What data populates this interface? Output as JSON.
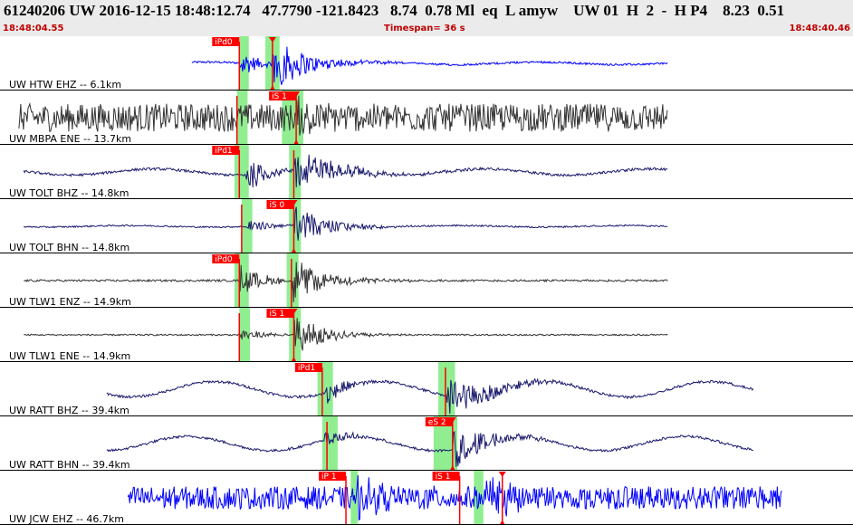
{
  "header": {
    "title": "61240206 UW 2016-12-15 18:48:12.74   47.7790 -121.8423   8.74  0.78 Ml  eq  L amyw    UW 01  H  2  -  H P4    8.23  0.51",
    "start_time": "18:48:04.55",
    "timespan": "Timespan=  36 s",
    "end_time": "18:48:40.46"
  },
  "colors": {
    "header_bg": "#ebebeb",
    "header_text": "#000000",
    "time_text": "#c00000",
    "pick_red": "#ff0000",
    "window_green": "#90ee90",
    "trace_blue": "#0000ff",
    "trace_dark": "#333333",
    "trace_navy": "#1a1a6e"
  },
  "channels": [
    {
      "label": "UW HTW EHZ -- 6.1km",
      "color": "trace_blue",
      "t0": 8.1,
      "t1": 28.2,
      "noise": 0.04,
      "drift": 0.05,
      "ev": [
        {
          "t": 10.1,
          "amp": 0.6,
          "d": 1.4
        },
        {
          "t": 11.5,
          "amp": 0.9,
          "d": 3.2
        }
      ],
      "picks": [
        {
          "label": "iPd0",
          "t": 10.1,
          "tri": false,
          "fs": 0.0,
          "fe": 0.4
        },
        {
          "label": "",
          "t": 11.5,
          "tri": true,
          "fs": -0.3,
          "fe": 0.3
        }
      ]
    },
    {
      "label": "UW MBPA ENE -- 13.7km",
      "color": "trace_dark",
      "t0": 0.8,
      "t1": 28.2,
      "noise": 0.55,
      "drift": 0,
      "ev": [
        {
          "t": 12.5,
          "amp": 0.7,
          "d": 1.5
        }
      ],
      "picks": [
        {
          "label": "iS 1",
          "t": 12.5,
          "tri": true,
          "fs": -0.6,
          "fe": 0.3
        },
        {
          "label": "",
          "t": 10.0,
          "tri": false,
          "fs": 0,
          "fe": 0.45
        }
      ]
    },
    {
      "label": "UW TOLT BHZ -- 14.8km",
      "color": "trace_navy",
      "t0": 1.0,
      "t1": 28.2,
      "noise": 0.05,
      "drift": 0.12,
      "ev": [
        {
          "t": 10.4,
          "amp": 0.6,
          "d": 2
        },
        {
          "t": 12.4,
          "amp": 0.7,
          "d": 4
        }
      ],
      "picks": [
        {
          "label": "iPd1",
          "t": 10.1,
          "tri": false,
          "fs": -0.2,
          "fe": 0.4
        },
        {
          "label": "",
          "t": 12.4,
          "tri": false,
          "fs": -0.2,
          "fe": 0.3
        }
      ]
    },
    {
      "label": "UW TOLT BHN -- 14.8km",
      "color": "trace_navy",
      "t0": 1.0,
      "t1": 28.2,
      "noise": 0.03,
      "drift": 0.03,
      "ev": [
        {
          "t": 10.4,
          "amp": 0.25,
          "d": 2
        },
        {
          "t": 12.4,
          "amp": 0.7,
          "d": 3
        }
      ],
      "picks": [
        {
          "label": "iS 0",
          "t": 12.4,
          "tri": true,
          "fs": -0.2,
          "fe": 0.3
        },
        {
          "label": "",
          "t": 10.2,
          "tri": false,
          "fs": 0,
          "fe": 0.45
        }
      ]
    },
    {
      "label": "UW TLW1 ENZ -- 14.9km",
      "color": "trace_dark",
      "t0": 1.0,
      "t1": 28.2,
      "noise": 0.04,
      "drift": 0,
      "ev": [
        {
          "t": 10.1,
          "amp": 0.6,
          "d": 2
        },
        {
          "t": 12.3,
          "amp": 0.8,
          "d": 3
        }
      ],
      "picks": [
        {
          "label": "iPd0",
          "t": 10.1,
          "tri": false,
          "fs": -0.2,
          "fe": 0.4
        },
        {
          "label": "",
          "t": 12.3,
          "tri": false,
          "fs": -0.2,
          "fe": 0.3
        }
      ]
    },
    {
      "label": "UW TLW1 ENE -- 14.9km",
      "color": "trace_dark",
      "t0": 1.0,
      "t1": 28.2,
      "noise": 0.03,
      "drift": 0,
      "ev": [
        {
          "t": 10.1,
          "amp": 0.25,
          "d": 2
        },
        {
          "t": 12.4,
          "amp": 0.8,
          "d": 2.5
        }
      ],
      "picks": [
        {
          "label": "iS 1",
          "t": 12.4,
          "tri": true,
          "fs": -0.2,
          "fe": 0.3
        },
        {
          "label": "",
          "t": 10.1,
          "tri": false,
          "fs": 0,
          "fe": 0.45
        }
      ]
    },
    {
      "label": "UW RATT BHZ -- 39.4km",
      "color": "trace_navy",
      "t0": 4.5,
      "t1": 31.8,
      "noise": 0.05,
      "drift": 0.3,
      "ev": [
        {
          "t": 13.7,
          "amp": 0.45,
          "d": 2
        },
        {
          "t": 18.8,
          "amp": 0.7,
          "d": 4
        }
      ],
      "picks": [
        {
          "label": "iPd1",
          "t": 13.6,
          "tri": false,
          "fs": -0.2,
          "fe": 0.45
        },
        {
          "label": "",
          "t": 18.8,
          "tri": false,
          "fs": -0.3,
          "fe": 0.4
        }
      ]
    },
    {
      "label": "UW RATT BHN -- 39.4km",
      "color": "trace_navy",
      "t0": 4.5,
      "t1": 31.8,
      "noise": 0.05,
      "drift": 0.28,
      "ev": [
        {
          "t": 13.7,
          "amp": 0.3,
          "d": 2
        },
        {
          "t": 19.1,
          "amp": 0.8,
          "d": 3
        }
      ],
      "picks": [
        {
          "label": "eS 2",
          "t": 19.1,
          "tri": true,
          "fs": -0.8,
          "fe": 0.2
        },
        {
          "label": "",
          "t": 13.8,
          "tri": false,
          "fs": -0.2,
          "fe": 0.45
        }
      ]
    },
    {
      "label": "UW JCW EHZ -- 46.7km",
      "color": "trace_blue",
      "t0": 5.4,
      "t1": 33.0,
      "noise": 0.45,
      "drift": 0,
      "ev": [
        {
          "t": 15.0,
          "amp": 0.5,
          "d": 3
        },
        {
          "t": 20.5,
          "amp": 0.7,
          "d": 2
        }
      ],
      "picks": [
        {
          "label": "iP 1",
          "t": 14.6,
          "tri": false,
          "fs": 0.2,
          "fe": 0.5
        },
        {
          "label": "iS 1",
          "t": 19.4,
          "tri": false,
          "fs": 0.6,
          "fe": 1.0
        },
        {
          "label": "",
          "t": 21.2,
          "tri": true,
          "fs": 0,
          "fe": 0
        }
      ]
    }
  ]
}
